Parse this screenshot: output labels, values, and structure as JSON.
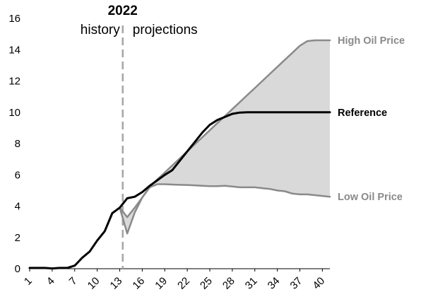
{
  "chart_data": {
    "type": "area",
    "x": [
      1,
      2,
      3,
      4,
      5,
      6,
      7,
      8,
      9,
      10,
      11,
      12,
      13,
      14,
      15,
      16,
      17,
      18,
      19,
      20,
      21,
      22,
      23,
      24,
      25,
      26,
      27,
      28,
      29,
      30,
      31,
      32,
      33,
      34,
      35,
      36,
      37,
      38,
      39,
      40,
      41
    ],
    "x_tick_labels": [
      "1",
      "4",
      "7",
      "10",
      "13",
      "16",
      "19",
      "22",
      "25",
      "28",
      "31",
      "34",
      "37",
      "40"
    ],
    "x_tick_values": [
      1,
      4,
      7,
      10,
      13,
      16,
      19,
      22,
      25,
      28,
      31,
      34,
      37,
      40
    ],
    "ylim": [
      0,
      16
    ],
    "y_ticks": [
      0,
      2,
      4,
      6,
      8,
      10,
      12,
      14,
      16
    ],
    "xlim": [
      1,
      41
    ],
    "divider": {
      "x": 13.4,
      "year_label": "2022",
      "left_label": "history",
      "right_label": "projections"
    },
    "series": [
      {
        "name": "High Oil Price",
        "color": "#8a8a8a",
        "values": [
          0.05,
          0.05,
          0.05,
          0.02,
          0.05,
          0.05,
          0.2,
          0.7,
          1.1,
          1.8,
          2.4,
          3.55,
          3.9,
          3.3,
          3.9,
          4.55,
          5.25,
          5.7,
          6.15,
          6.6,
          7.05,
          7.5,
          7.95,
          8.4,
          8.85,
          9.3,
          9.75,
          10.2,
          10.65,
          11.1,
          11.55,
          12.0,
          12.45,
          12.9,
          13.35,
          13.8,
          14.25,
          14.55,
          14.6,
          14.6,
          14.6
        ]
      },
      {
        "name": "Reference",
        "color": "#000000",
        "values": [
          0.05,
          0.05,
          0.05,
          0.02,
          0.05,
          0.05,
          0.2,
          0.7,
          1.1,
          1.8,
          2.4,
          3.55,
          3.9,
          4.5,
          4.6,
          4.9,
          5.3,
          5.65,
          6.0,
          6.3,
          6.9,
          7.5,
          8.1,
          8.7,
          9.2,
          9.5,
          9.7,
          9.9,
          9.98,
          10.0,
          10.0,
          10.0,
          10.0,
          10.0,
          10.0,
          10.0,
          10.0,
          10.0,
          10.0,
          10.0,
          10.0
        ]
      },
      {
        "name": "Low Oil Price",
        "color": "#8a8a8a",
        "values": [
          0.05,
          0.05,
          0.05,
          0.02,
          0.05,
          0.05,
          0.2,
          0.7,
          1.1,
          1.8,
          2.4,
          3.55,
          3.9,
          2.25,
          3.6,
          4.55,
          5.2,
          5.4,
          5.4,
          5.38,
          5.36,
          5.35,
          5.33,
          5.3,
          5.28,
          5.28,
          5.3,
          5.25,
          5.2,
          5.2,
          5.2,
          5.15,
          5.1,
          5.0,
          4.95,
          4.8,
          4.75,
          4.75,
          4.7,
          4.65,
          4.6
        ]
      }
    ],
    "band": {
      "between": [
        "High Oil Price",
        "Low Oil Price"
      ],
      "fill": "#d9d9d9"
    }
  }
}
